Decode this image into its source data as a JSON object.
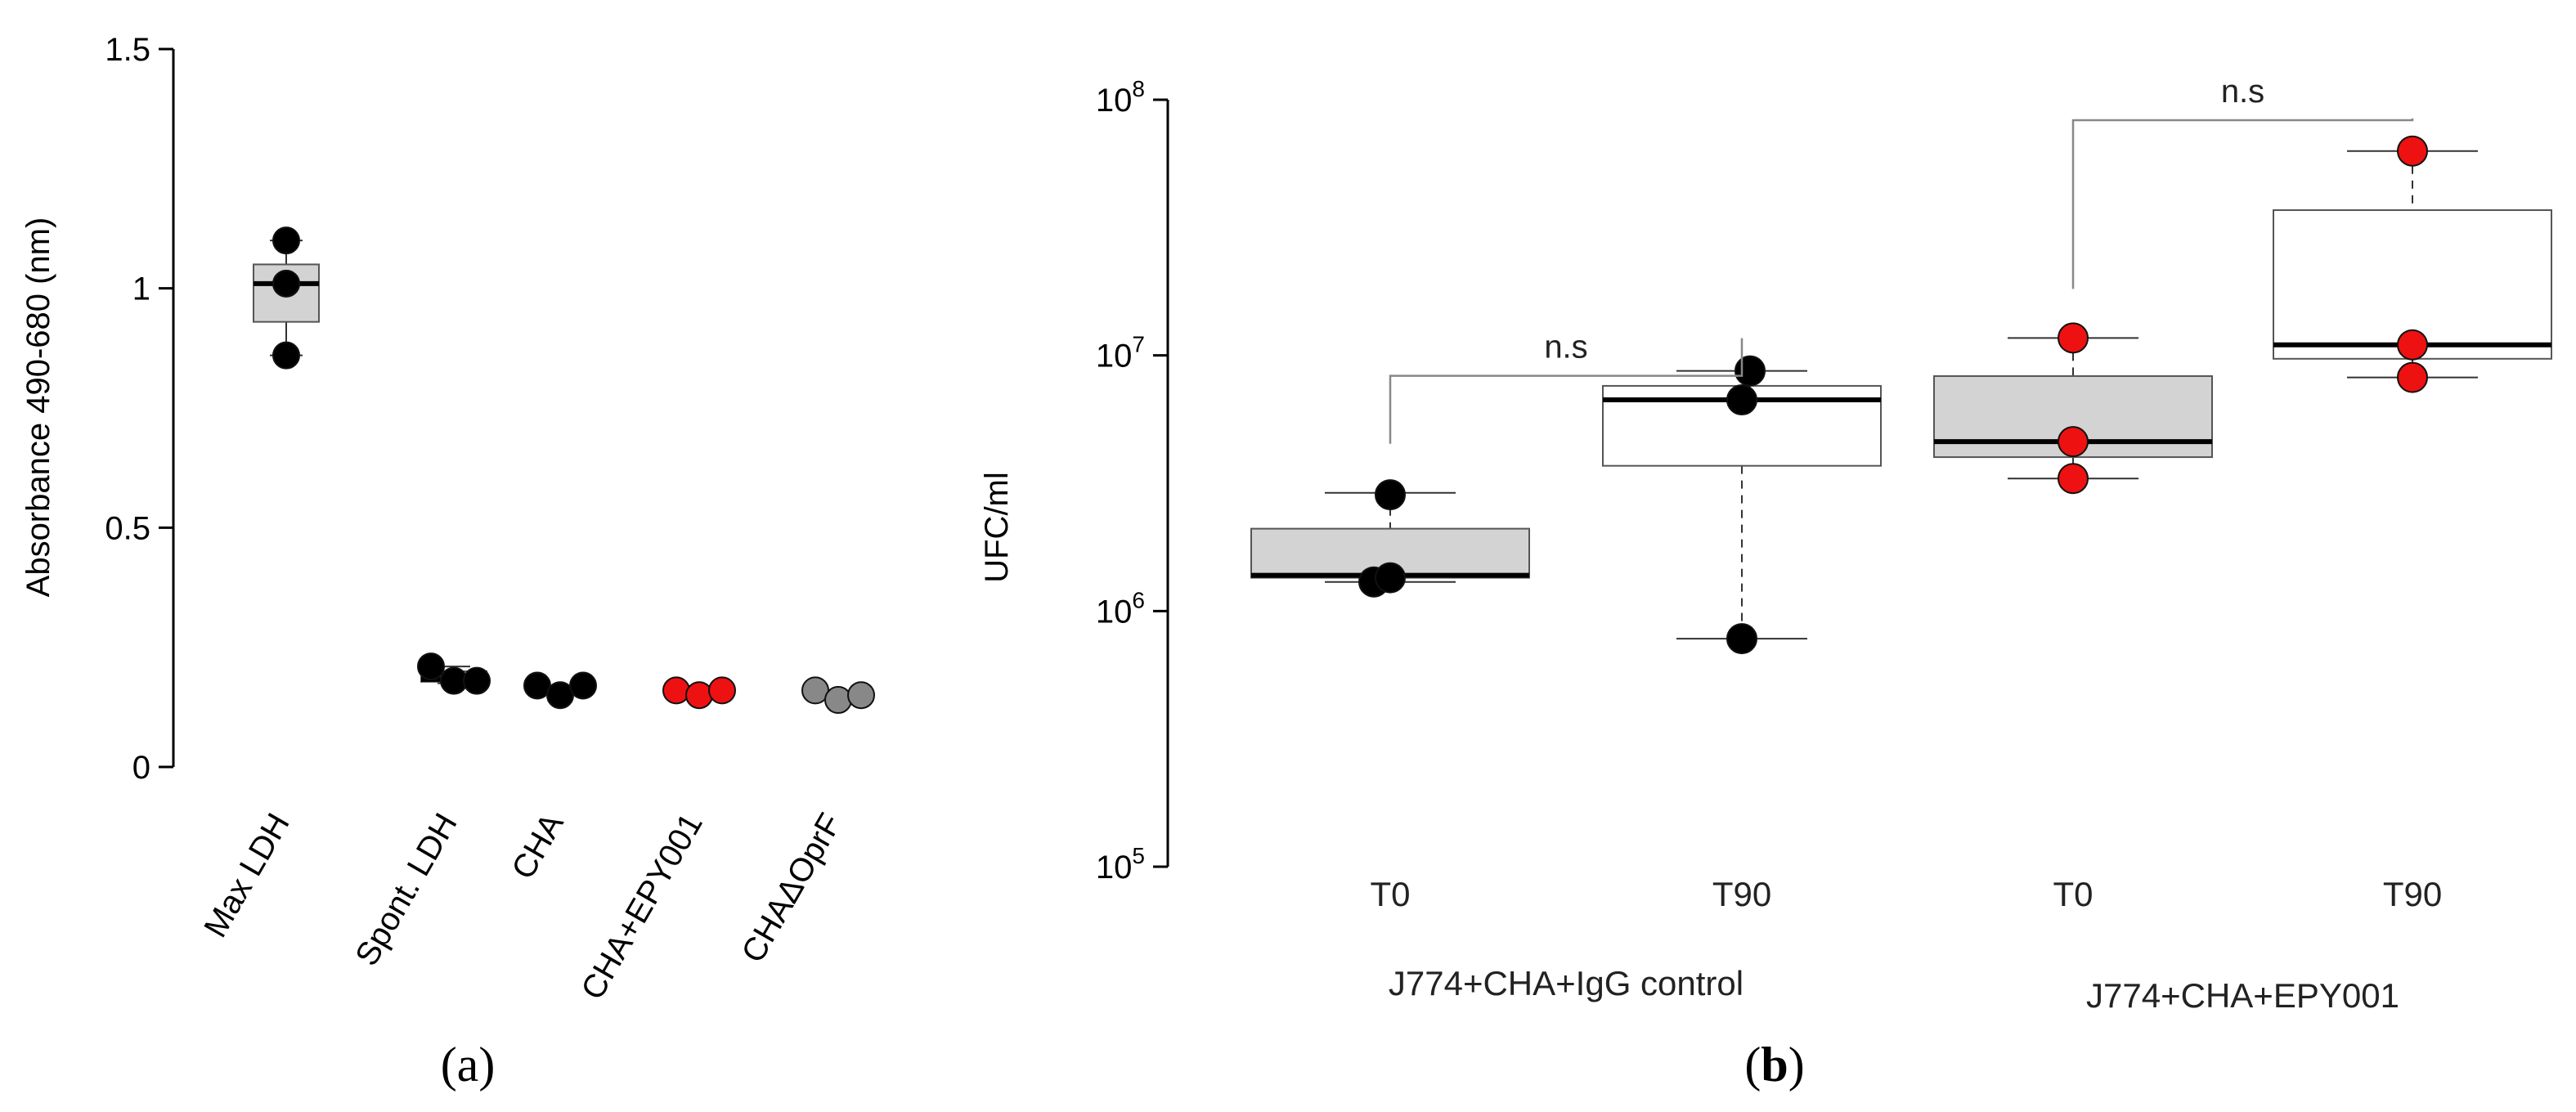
{
  "panels": {
    "a_open": "(",
    "a_letter": "a",
    "a_close": ")",
    "b_open": "(",
    "b_letter": "b",
    "b_close": ")"
  },
  "chart_data": [
    {
      "type": "box",
      "ylabel": "Absorbance 490-680 (nm)",
      "ylim": [
        0,
        1.5
      ],
      "yticks": [
        0,
        0.5,
        1,
        1.5
      ],
      "ytick_labels": [
        "0",
        "0.5",
        "1",
        "1.5"
      ],
      "categories": [
        "Max LDH",
        "Spont. LDH",
        "CHA",
        "CHA+EPY001",
        "CHAΔOprF"
      ],
      "boxes": [
        {
          "category": "Max LDH",
          "min": 0.86,
          "q1": 0.93,
          "median": 1.01,
          "q3": 1.05,
          "max": 1.1,
          "fill": "#d3d3d3"
        },
        {
          "category": "Spont. LDH",
          "min": 0.175,
          "q1": 0.178,
          "median": 0.183,
          "q3": 0.2,
          "max": 0.21,
          "fill": "#d3d3d3"
        },
        {
          "category": "CHA",
          "min": 0.16,
          "q1": 0.162,
          "median": 0.165,
          "q3": 0.168,
          "max": 0.17,
          "fill": "#d3d3d3"
        },
        {
          "category": "CHA+EPY001",
          "min": 0.155,
          "q1": 0.156,
          "median": 0.158,
          "q3": 0.16,
          "max": 0.162,
          "fill": "#d3d3d3"
        },
        {
          "category": "CHAΔOprF",
          "min": 0.145,
          "q1": 0.148,
          "median": 0.152,
          "q3": 0.155,
          "max": 0.158,
          "fill": "#d3d3d3"
        }
      ],
      "points": [
        {
          "category": "Max LDH",
          "values": [
            0.86,
            1.01,
            1.1
          ],
          "color": "#000000"
        },
        {
          "category": "Spont. LDH",
          "values": [
            0.21,
            0.18,
            0.18
          ],
          "color": "#000000"
        },
        {
          "category": "CHA",
          "values": [
            0.17,
            0.15,
            0.17
          ],
          "color": "#000000"
        },
        {
          "category": "CHA+EPY001",
          "values": [
            0.16,
            0.15,
            0.16
          ],
          "color": "#ee1111"
        },
        {
          "category": "CHAΔOprF",
          "values": [
            0.16,
            0.14,
            0.15
          ],
          "color": "#888888"
        }
      ]
    },
    {
      "type": "box",
      "ylabel": "UFC/ml",
      "yscale": "log",
      "ylim_exp": [
        5,
        8
      ],
      "ytick_base": "10",
      "ytick_exps": [
        "5",
        "6",
        "7",
        "8"
      ],
      "categories": [
        "T0",
        "T90",
        "T0",
        "T90"
      ],
      "groups": [
        {
          "label": "J774+CHA+IgG control",
          "span": [
            0,
            1
          ]
        },
        {
          "label": "J774+CHA+EPY001",
          "span": [
            2,
            3
          ]
        }
      ],
      "boxes": [
        {
          "category": "T0",
          "min": 1300000,
          "q1": 1350000,
          "median": 1380000,
          "q3": 2100000,
          "max": 2900000,
          "fill": "#d3d3d3"
        },
        {
          "category": "T90",
          "min": 780000,
          "q1": 3700000,
          "median": 6700000,
          "q3": 7600000,
          "max": 8700000,
          "fill": "#ffffff"
        },
        {
          "category": "T0",
          "min": 3300000,
          "q1": 4000000,
          "median": 4600000,
          "q3": 8300000,
          "max": 11700000,
          "fill": "#d3d3d3"
        },
        {
          "category": "T90",
          "min": 8200000,
          "q1": 9700000,
          "median": 11000000,
          "q3": 37000000,
          "max": 63000000,
          "fill": "#ffffff"
        }
      ],
      "points": [
        {
          "category": "T0",
          "values": [
            2850000,
            1300000,
            1350000
          ],
          "color": "#000000"
        },
        {
          "category": "T90",
          "values": [
            8700000,
            6700000,
            780000
          ],
          "color": "#000000"
        },
        {
          "category": "T0",
          "values": [
            11700000,
            4600000,
            3300000
          ],
          "color": "#ee1111"
        },
        {
          "category": "T90",
          "values": [
            63000000,
            11000000,
            8200000
          ],
          "color": "#ee1111"
        }
      ],
      "significance": [
        {
          "between": [
            0,
            1
          ],
          "label": "n.s",
          "level_exp": 6.92
        },
        {
          "between": [
            2,
            3
          ],
          "label": "n.s",
          "level_exp": 7.92
        }
      ]
    }
  ]
}
